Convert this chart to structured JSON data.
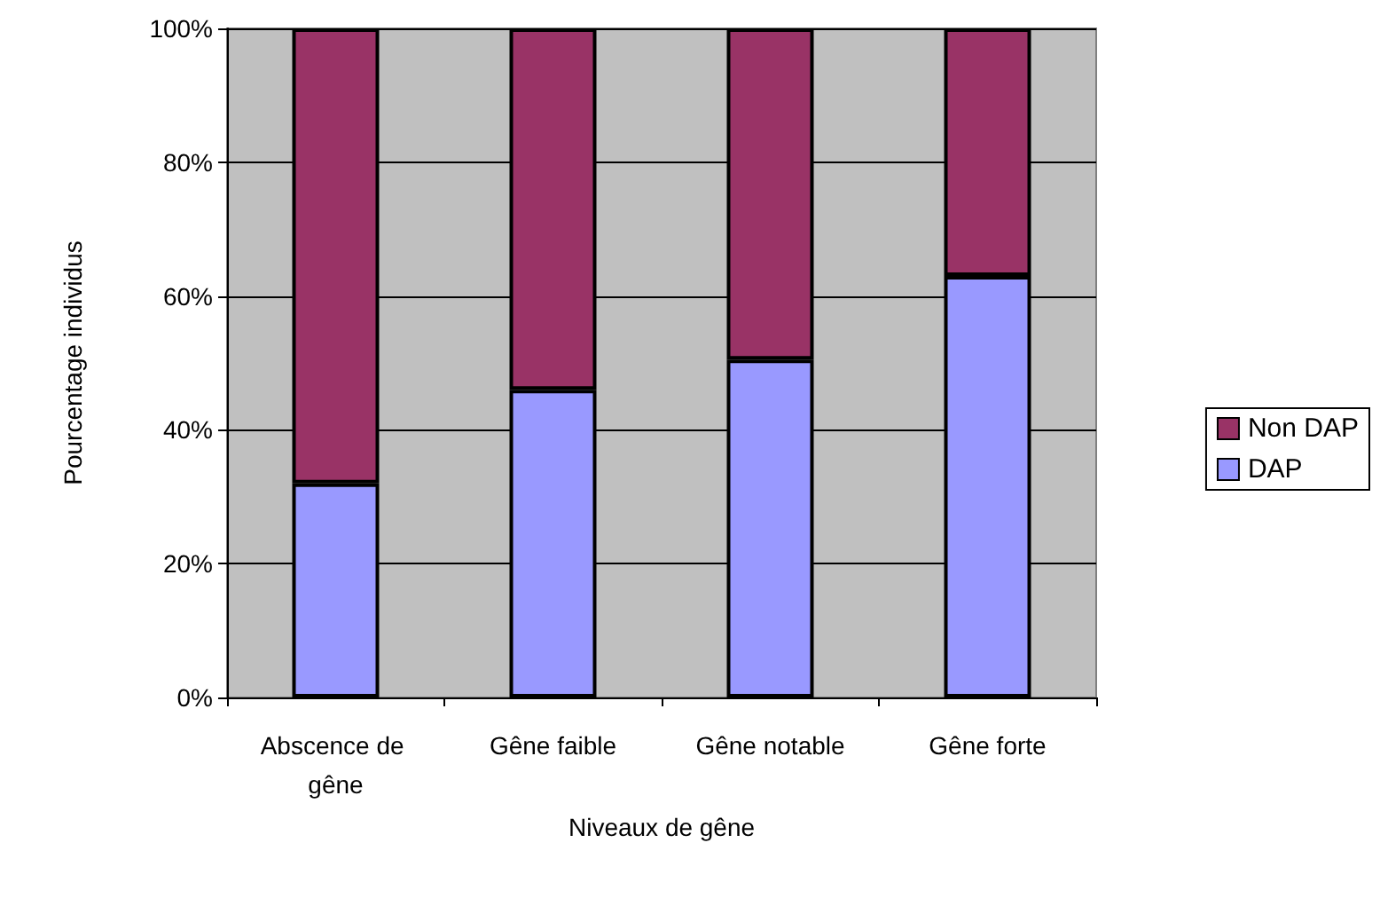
{
  "chart_data": {
    "type": "bar",
    "stacked": true,
    "xlabel": "Niveaux de gêne",
    "ylabel": "Pourcentage individus",
    "categories": [
      "Abscence de gêne",
      "Gêne faible",
      "Gêne notable",
      "Gêne forte"
    ],
    "series": [
      {
        "name": "DAP",
        "color": "#9999ff",
        "values": [
          32,
          46,
          50.5,
          63
        ]
      },
      {
        "name": "Non DAP",
        "color": "#993366",
        "values": [
          68,
          54,
          49.5,
          37
        ]
      }
    ],
    "ylim": [
      0,
      100
    ],
    "yticks": [
      {
        "value": 0,
        "label": "0%"
      },
      {
        "value": 20,
        "label": "20%"
      },
      {
        "value": 40,
        "label": "40%"
      },
      {
        "value": 60,
        "label": "60%"
      },
      {
        "value": 80,
        "label": "80%"
      },
      {
        "value": 100,
        "label": "100%"
      }
    ],
    "grid": "y",
    "legend": "right"
  }
}
